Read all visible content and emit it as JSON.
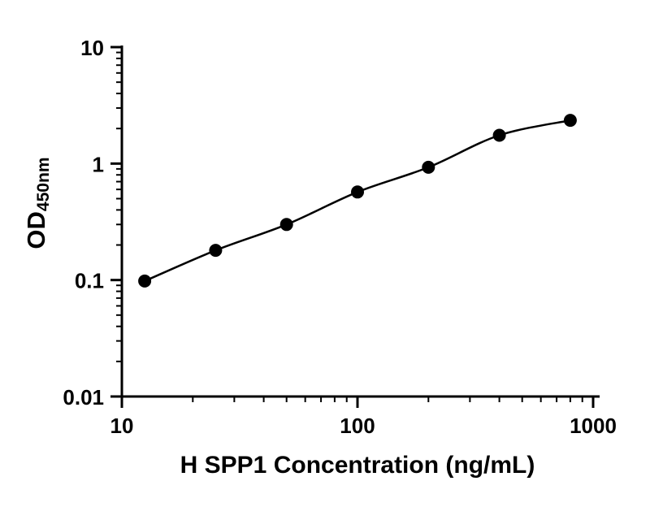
{
  "chart_data": {
    "type": "scatter",
    "title": "",
    "xlabel": "H SPP1 Concentration (ng/mL)",
    "ylabel": "OD",
    "ylabel_subscript": "450nm",
    "xscale": "log",
    "yscale": "log",
    "xlim": [
      10,
      1000
    ],
    "ylim": [
      0.01,
      10
    ],
    "xticks": [
      10,
      100,
      1000
    ],
    "yticks": [
      10,
      1,
      0.1,
      0.01
    ],
    "x": [
      12.5,
      25,
      50,
      100,
      200,
      400,
      800
    ],
    "y": [
      0.098,
      0.18,
      0.3,
      0.57,
      0.93,
      1.75,
      2.35
    ],
    "fit": "smooth sigmoidal (4PL-style) curve through points",
    "grid": false,
    "legend": "none",
    "marker_color": "#000000",
    "line_color": "#000000",
    "background_color": "#ffffff"
  }
}
